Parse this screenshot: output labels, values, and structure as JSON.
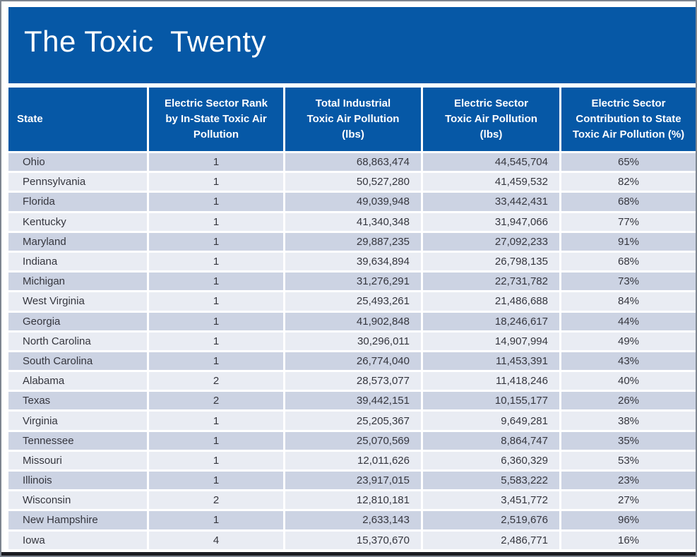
{
  "title": "The Toxic  Twenty",
  "colors": {
    "banner_blue": "#0658A6",
    "row_stripe_dark": "#CCD3E3",
    "row_stripe_light": "#E9ECF3",
    "header_text": "#FFFFFF",
    "body_text": "#35363E",
    "bottom_rule": "#1A1C22",
    "frame_gray": "#7D8590"
  },
  "table": {
    "headers": [
      "State",
      "Electric Sector Rank\nby In-State Toxic Air\nPollution",
      "Total Industrial\nToxic Air Pollution\n(lbs)",
      "Electric Sector\nToxic Air Pollution\n(lbs)",
      "Electric Sector\nContribution to State\nToxic Air Pollution (%)"
    ],
    "rows": [
      {
        "state": "Ohio",
        "rank": "1",
        "total_lbs": "68,863,474",
        "electric_lbs": "44,545,704",
        "contribution_pct": "65%"
      },
      {
        "state": "Pennsylvania",
        "rank": "1",
        "total_lbs": "50,527,280",
        "electric_lbs": "41,459,532",
        "contribution_pct": "82%"
      },
      {
        "state": "Florida",
        "rank": "1",
        "total_lbs": "49,039,948",
        "electric_lbs": "33,442,431",
        "contribution_pct": "68%"
      },
      {
        "state": "Kentucky",
        "rank": "1",
        "total_lbs": "41,340,348",
        "electric_lbs": "31,947,066",
        "contribution_pct": "77%"
      },
      {
        "state": "Maryland",
        "rank": "1",
        "total_lbs": "29,887,235",
        "electric_lbs": "27,092,233",
        "contribution_pct": "91%"
      },
      {
        "state": "Indiana",
        "rank": "1",
        "total_lbs": "39,634,894",
        "electric_lbs": "26,798,135",
        "contribution_pct": "68%"
      },
      {
        "state": "Michigan",
        "rank": "1",
        "total_lbs": "31,276,291",
        "electric_lbs": "22,731,782",
        "contribution_pct": "73%"
      },
      {
        "state": "West Virginia",
        "rank": "1",
        "total_lbs": "25,493,261",
        "electric_lbs": "21,486,688",
        "contribution_pct": "84%"
      },
      {
        "state": "Georgia",
        "rank": "1",
        "total_lbs": "41,902,848",
        "electric_lbs": "18,246,617",
        "contribution_pct": "44%"
      },
      {
        "state": "North Carolina",
        "rank": "1",
        "total_lbs": "30,296,011",
        "electric_lbs": "14,907,994",
        "contribution_pct": "49%"
      },
      {
        "state": "South Carolina",
        "rank": "1",
        "total_lbs": "26,774,040",
        "electric_lbs": "11,453,391",
        "contribution_pct": "43%"
      },
      {
        "state": "Alabama",
        "rank": "2",
        "total_lbs": "28,573,077",
        "electric_lbs": "11,418,246",
        "contribution_pct": "40%"
      },
      {
        "state": "Texas",
        "rank": "2",
        "total_lbs": "39,442,151",
        "electric_lbs": "10,155,177",
        "contribution_pct": "26%"
      },
      {
        "state": "Virginia",
        "rank": "1",
        "total_lbs": "25,205,367",
        "electric_lbs": "9,649,281",
        "contribution_pct": "38%"
      },
      {
        "state": "Tennessee",
        "rank": "1",
        "total_lbs": "25,070,569",
        "electric_lbs": "8,864,747",
        "contribution_pct": "35%"
      },
      {
        "state": "Missouri",
        "rank": "1",
        "total_lbs": "12,011,626",
        "electric_lbs": "6,360,329",
        "contribution_pct": "53%"
      },
      {
        "state": "Illinois",
        "rank": "1",
        "total_lbs": "23,917,015",
        "electric_lbs": "5,583,222",
        "contribution_pct": "23%"
      },
      {
        "state": "Wisconsin",
        "rank": "2",
        "total_lbs": "12,810,181",
        "electric_lbs": "3,451,772",
        "contribution_pct": "27%"
      },
      {
        "state": "New Hampshire",
        "rank": "1",
        "total_lbs": "2,633,143",
        "electric_lbs": "2,519,676",
        "contribution_pct": "96%"
      },
      {
        "state": "Iowa",
        "rank": "4",
        "total_lbs": "15,370,670",
        "electric_lbs": "2,486,771",
        "contribution_pct": "16%"
      }
    ]
  },
  "chart_data": {
    "type": "table",
    "title": "The Toxic Twenty",
    "categories": [
      "Ohio",
      "Pennsylvania",
      "Florida",
      "Kentucky",
      "Maryland",
      "Indiana",
      "Michigan",
      "West Virginia",
      "Georgia",
      "North Carolina",
      "South Carolina",
      "Alabama",
      "Texas",
      "Virginia",
      "Tennessee",
      "Missouri",
      "Illinois",
      "Wisconsin",
      "New Hampshire",
      "Iowa"
    ],
    "series": [
      {
        "name": "Electric Sector Rank by In-State Toxic Air Pollution",
        "values": [
          1,
          1,
          1,
          1,
          1,
          1,
          1,
          1,
          1,
          1,
          1,
          2,
          2,
          1,
          1,
          1,
          1,
          2,
          1,
          4
        ]
      },
      {
        "name": "Total Industrial Toxic Air Pollution (lbs)",
        "values": [
          68863474,
          50527280,
          49039948,
          41340348,
          29887235,
          39634894,
          31276291,
          25493261,
          41902848,
          30296011,
          26774040,
          28573077,
          39442151,
          25205367,
          25070569,
          12011626,
          23917015,
          12810181,
          2633143,
          15370670
        ]
      },
      {
        "name": "Electric Sector Toxic Air Pollution (lbs)",
        "values": [
          44545704,
          41459532,
          33442431,
          31947066,
          27092233,
          26798135,
          22731782,
          21486688,
          18246617,
          14907994,
          11453391,
          11418246,
          10155177,
          9649281,
          8864747,
          6360329,
          5583222,
          3451772,
          2519676,
          2486771
        ]
      },
      {
        "name": "Electric Sector Contribution to State Toxic Air Pollution (%)",
        "values": [
          65,
          82,
          68,
          77,
          91,
          68,
          73,
          84,
          44,
          49,
          43,
          40,
          26,
          38,
          35,
          53,
          23,
          27,
          96,
          16
        ]
      }
    ]
  }
}
